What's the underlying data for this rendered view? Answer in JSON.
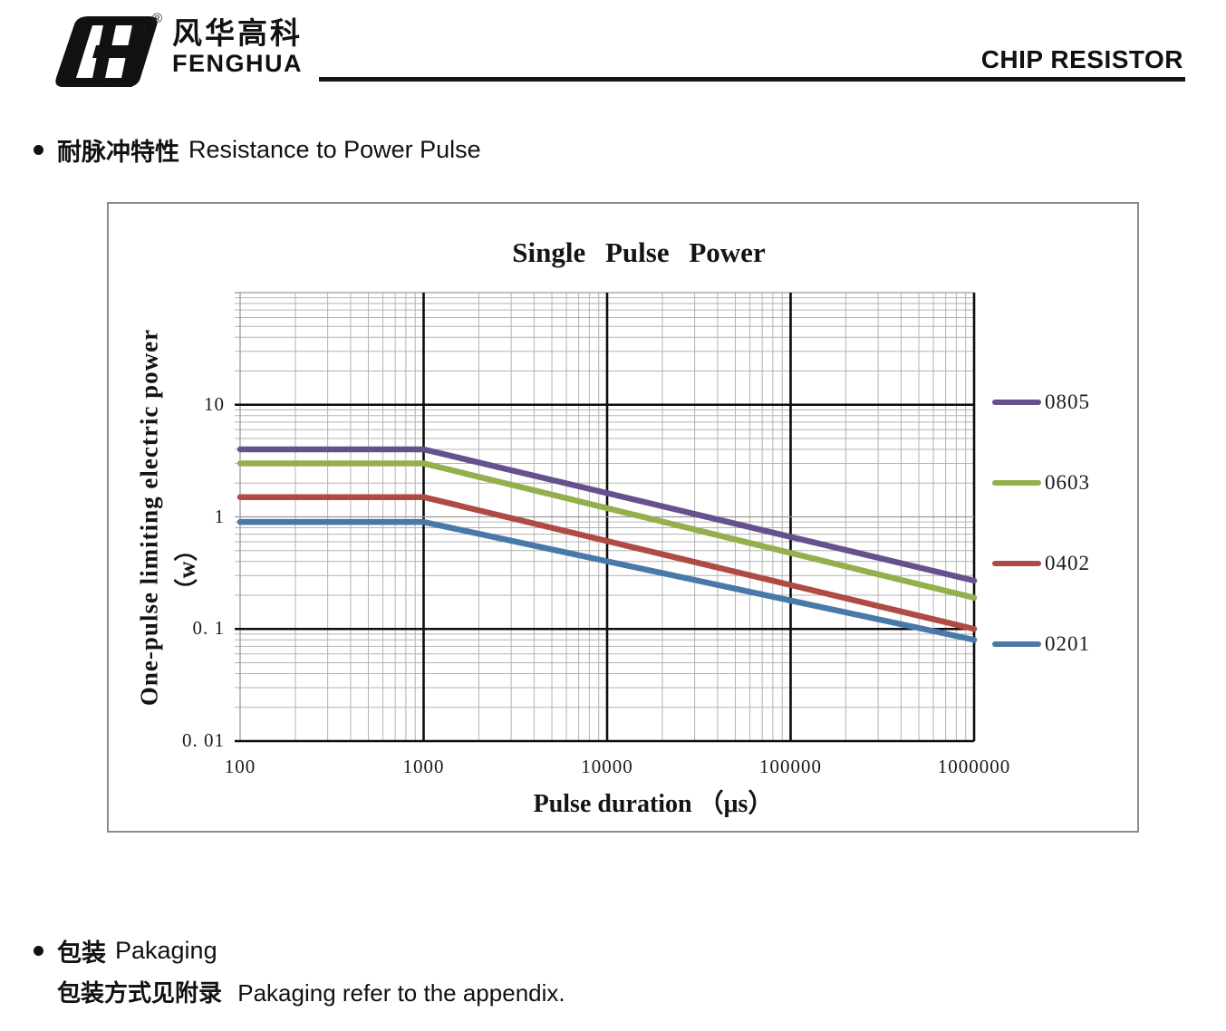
{
  "header": {
    "brand_cn": "风华高科",
    "brand_en": "FENGHUA",
    "registered_mark": "®",
    "product": "CHIP RESISTOR"
  },
  "sections": {
    "pulse": {
      "bullet_cn": "耐脉冲特性",
      "bullet_en": "Resistance to Power Pulse"
    },
    "packaging": {
      "bullet_cn": "包装",
      "bullet_en": "Pakaging",
      "note_cn": "包装方式见附录",
      "note_en": "Pakaging refer to the appendix."
    }
  },
  "chart_data": {
    "type": "line",
    "title": "Single Pulse Power",
    "xlabel": "Pulse duration （μs）",
    "ylabel": "One-pulse limiting electric power",
    "ylabel_unit": "（w）",
    "x_scale": "log",
    "y_scale": "log",
    "xlim": [
      100,
      1000000
    ],
    "ylim": [
      0.01,
      100
    ],
    "x_ticks": [
      100,
      1000,
      10000,
      100000,
      1000000
    ],
    "x_tick_labels": [
      "100",
      "1000",
      "10000",
      "100000",
      "1000000"
    ],
    "y_ticks": [
      10,
      1,
      0.1,
      0.01
    ],
    "y_tick_labels": [
      "10",
      "1",
      "0. 1",
      "0. 01"
    ],
    "grid": {
      "minor_log_grid": true,
      "bold_x": [
        1000,
        10000,
        100000,
        1000000
      ],
      "bold_y": [
        10,
        0.1,
        0.01
      ]
    },
    "legend_position": "right-outside",
    "series": [
      {
        "name": "0805",
        "color": "#66518F",
        "points": [
          [
            100,
            4.0
          ],
          [
            1000,
            4.0
          ],
          [
            1000000,
            0.27
          ]
        ]
      },
      {
        "name": "0603",
        "color": "#94AF4C",
        "points": [
          [
            100,
            3.0
          ],
          [
            1000,
            3.0
          ],
          [
            1000000,
            0.19
          ]
        ]
      },
      {
        "name": "0402",
        "color": "#AF4A45",
        "points": [
          [
            100,
            1.5
          ],
          [
            1000,
            1.5
          ],
          [
            1000000,
            0.1
          ]
        ]
      },
      {
        "name": "0201",
        "color": "#4879A9",
        "points": [
          [
            100,
            0.9
          ],
          [
            1000,
            0.9
          ],
          [
            1000000,
            0.08
          ]
        ]
      }
    ]
  }
}
